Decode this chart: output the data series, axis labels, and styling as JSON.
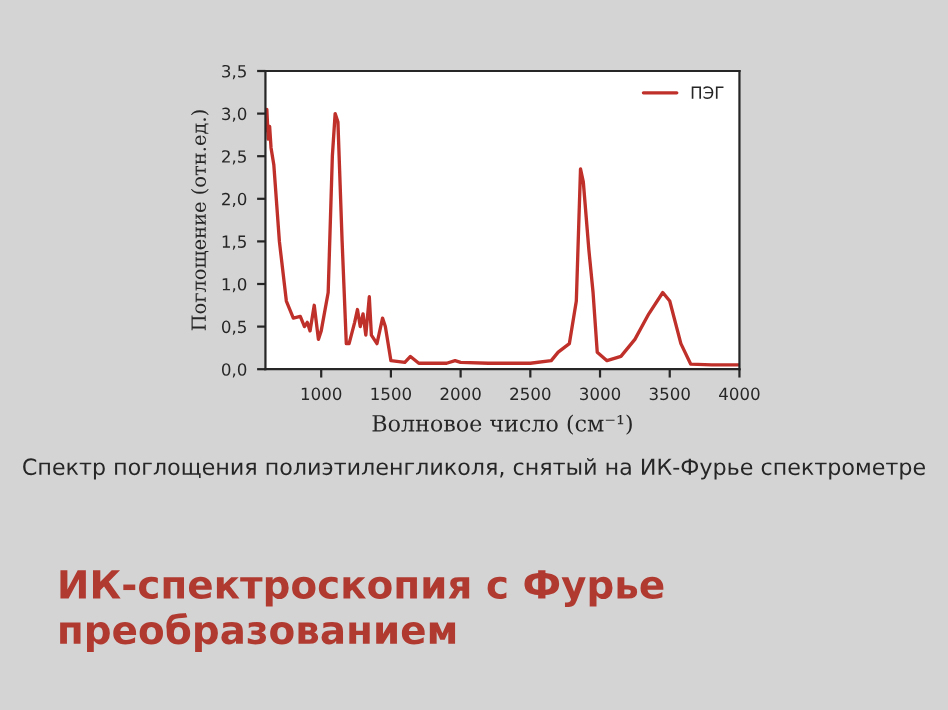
{
  "chart_data": {
    "type": "line",
    "title": "ИК-спектроскопия с Фурье преобразованием",
    "xlabel": "Волновое число (см⁻¹)",
    "ylabel": "Поглощение (отн.ед.)",
    "annotations": [
      "Спектр поглощения полиэтиленгликоля, снятый на ИК-Фурье спектрометре"
    ],
    "series": [
      {
        "name": "ПЭГ",
        "color": "#c0302a",
        "x": [
          600,
          610,
          620,
          630,
          640,
          660,
          700,
          750,
          800,
          850,
          880,
          900,
          920,
          950,
          980,
          1000,
          1050,
          1080,
          1100,
          1120,
          1150,
          1180,
          1200,
          1240,
          1260,
          1280,
          1300,
          1320,
          1345,
          1360,
          1400,
          1440,
          1460,
          1500,
          1600,
          1640,
          1700,
          1900,
          1960,
          2000,
          2200,
          2500,
          2650,
          2700,
          2780,
          2830,
          2860,
          2880,
          2920,
          2950,
          2980,
          3050,
          3150,
          3250,
          3350,
          3450,
          3500,
          3580,
          3650,
          3800,
          4000
        ],
        "values": [
          2.8,
          3.05,
          2.7,
          2.85,
          2.6,
          2.4,
          1.5,
          0.8,
          0.6,
          0.62,
          0.5,
          0.55,
          0.45,
          0.75,
          0.35,
          0.45,
          0.9,
          2.5,
          3.0,
          2.9,
          1.5,
          0.3,
          0.3,
          0.55,
          0.7,
          0.5,
          0.65,
          0.4,
          0.85,
          0.4,
          0.3,
          0.6,
          0.5,
          0.1,
          0.08,
          0.15,
          0.07,
          0.07,
          0.1,
          0.08,
          0.07,
          0.07,
          0.1,
          0.2,
          0.3,
          0.8,
          2.35,
          2.2,
          1.4,
          0.9,
          0.2,
          0.1,
          0.15,
          0.35,
          0.65,
          0.9,
          0.8,
          0.3,
          0.06,
          0.05,
          0.05
        ]
      }
    ],
    "xlim": [
      600,
      4000
    ],
    "xticks": [
      1000,
      1500,
      2000,
      2500,
      3000,
      3500,
      4000
    ],
    "ylim": [
      0,
      3.5
    ],
    "yticks": [
      {
        "value": 0,
        "label": "0,0"
      },
      {
        "value": 0.5,
        "label": "0,5"
      },
      {
        "value": 1,
        "label": "1,0"
      },
      {
        "value": 1.5,
        "label": "1,5"
      },
      {
        "value": 2,
        "label": "2,0"
      },
      {
        "value": 2.5,
        "label": "2,5"
      },
      {
        "value": 3,
        "label": "3,0"
      },
      {
        "value": 3.5,
        "label": "3,5"
      }
    ],
    "legend": "top right",
    "grid": false
  }
}
